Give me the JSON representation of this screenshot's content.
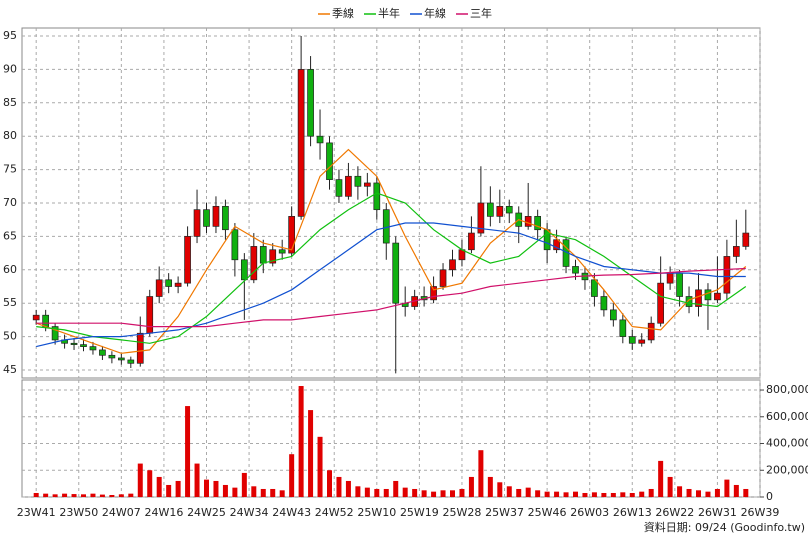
{
  "chart_data": [
    {
      "type": "candlestick",
      "x": [
        0,
        2,
        4,
        6,
        8,
        10,
        12,
        14,
        16,
        18,
        20,
        22,
        24,
        26,
        28,
        30,
        32,
        34,
        36,
        38,
        40,
        42,
        44,
        46,
        48,
        50,
        52,
        54,
        56,
        58,
        60,
        62,
        64,
        66,
        68,
        70,
        72,
        74,
        76,
        78,
        80,
        82,
        84,
        86,
        88,
        90,
        92,
        94,
        96,
        98,
        100,
        102,
        104,
        106,
        108,
        110,
        112,
        114,
        116,
        118,
        120,
        122,
        124,
        126,
        128,
        130,
        132,
        134,
        136,
        138,
        140,
        142,
        144,
        146,
        148,
        150
      ],
      "open": [
        52.5,
        53.2,
        51.5,
        49.5,
        49.0,
        48.8,
        48.5,
        48.0,
        47.2,
        46.8,
        46.5,
        46.0,
        50.5,
        56.0,
        58.5,
        57.5,
        58.0,
        65.0,
        69.0,
        66.5,
        69.5,
        66.0,
        61.5,
        58.5,
        63.5,
        61.0,
        63.0,
        62.5,
        68.0,
        90.0,
        80.0,
        79.0,
        73.5,
        71.0,
        74.0,
        72.5,
        73.0,
        69.0,
        64.0,
        55.0,
        54.5,
        56.0,
        55.5,
        57.5,
        60.0,
        61.5,
        63.0,
        65.5,
        70.0,
        68.0,
        69.5,
        68.5,
        66.5,
        68.0,
        66.0,
        63.0,
        64.5,
        60.5,
        59.5,
        58.5,
        56.0,
        54.0,
        52.5,
        50.0,
        49.0,
        49.5,
        52.0,
        58.0,
        59.5,
        56.0,
        54.5,
        57.0,
        55.5,
        56.5,
        62.0,
        63.5
      ],
      "high": [
        54.0,
        54.0,
        52.0,
        50.3,
        49.8,
        49.6,
        49.2,
        48.6,
        47.8,
        47.4,
        47.0,
        53.0,
        57.0,
        60.5,
        59.5,
        59.0,
        66.5,
        72.0,
        70.0,
        71.0,
        70.5,
        67.0,
        62.5,
        65.5,
        64.5,
        64.0,
        64.5,
        69.5,
        95.0,
        92.0,
        84.0,
        80.0,
        75.0,
        76.0,
        75.5,
        74.5,
        74.0,
        70.0,
        65.0,
        57.5,
        57.0,
        57.5,
        59.0,
        61.0,
        63.0,
        64.5,
        68.0,
        75.5,
        72.5,
        72.0,
        70.5,
        69.5,
        73.0,
        69.0,
        67.0,
        66.0,
        65.0,
        61.5,
        60.5,
        59.5,
        57.0,
        55.0,
        53.5,
        51.0,
        50.5,
        53.0,
        62.0,
        60.5,
        60.0,
        57.5,
        59.5,
        58.0,
        62.0,
        64.5,
        67.5,
        69.0
      ],
      "low": [
        51.8,
        50.8,
        48.8,
        48.2,
        48.0,
        47.8,
        47.3,
        46.5,
        46.0,
        45.8,
        45.3,
        45.5,
        50.0,
        55.0,
        56.5,
        56.5,
        57.5,
        64.0,
        65.5,
        65.5,
        64.5,
        59.0,
        52.5,
        58.0,
        59.5,
        60.5,
        61.5,
        62.0,
        67.5,
        78.5,
        76.5,
        72.0,
        70.0,
        70.5,
        70.5,
        71.0,
        67.5,
        61.5,
        44.5,
        53.0,
        54.0,
        54.5,
        55.0,
        57.0,
        59.0,
        60.5,
        62.5,
        65.0,
        66.5,
        67.0,
        67.0,
        64.0,
        66.0,
        64.5,
        61.0,
        62.5,
        59.5,
        58.5,
        57.0,
        54.5,
        53.0,
        51.5,
        49.0,
        48.0,
        48.5,
        49.0,
        51.5,
        57.0,
        54.5,
        53.5,
        53.0,
        51.0,
        55.0,
        55.5,
        61.0,
        63.0
      ],
      "close": [
        53.2,
        51.5,
        49.5,
        49.0,
        48.8,
        48.5,
        48.0,
        47.2,
        46.8,
        46.5,
        46.0,
        50.5,
        56.0,
        58.5,
        57.5,
        58.0,
        65.0,
        69.0,
        66.5,
        69.5,
        66.0,
        61.5,
        58.5,
        63.5,
        61.0,
        63.0,
        62.5,
        68.0,
        90.0,
        80.0,
        79.0,
        73.5,
        71.0,
        74.0,
        72.5,
        73.0,
        69.0,
        64.0,
        55.0,
        54.5,
        56.0,
        55.5,
        57.5,
        60.0,
        61.5,
        63.0,
        65.5,
        70.0,
        68.0,
        69.5,
        68.5,
        66.5,
        68.0,
        66.0,
        63.0,
        64.5,
        60.5,
        59.5,
        58.5,
        56.0,
        54.0,
        52.5,
        50.0,
        49.0,
        49.5,
        52.0,
        58.0,
        59.5,
        56.0,
        54.5,
        57.0,
        55.5,
        56.5,
        62.0,
        63.5,
        65.5
      ],
      "up_color": "#e00000",
      "down_color": "#10b010",
      "series": [
        {
          "name": "季線",
          "color": "#f07800",
          "x": [
            0,
            6,
            12,
            18,
            24,
            30,
            36,
            42,
            48,
            54,
            60,
            66,
            72,
            78,
            84,
            90,
            96,
            102,
            108,
            114,
            120,
            126,
            132,
            138,
            144,
            150
          ],
          "values": [
            52,
            50.5,
            49,
            47.5,
            48,
            53,
            60,
            66.5,
            64,
            63,
            74,
            78,
            74,
            65,
            57,
            58,
            64,
            67.5,
            66,
            62,
            57,
            51.5,
            51,
            55.5,
            57,
            60.5
          ]
        },
        {
          "name": "半年",
          "color": "#10c010",
          "x": [
            0,
            6,
            12,
            18,
            24,
            30,
            36,
            42,
            48,
            54,
            60,
            66,
            72,
            78,
            84,
            90,
            96,
            102,
            108,
            114,
            120,
            126,
            132,
            138,
            144,
            150
          ],
          "values": [
            51.5,
            51,
            50,
            49.5,
            49,
            50,
            53,
            57,
            61,
            62,
            66,
            69,
            71.5,
            70,
            66,
            63,
            61,
            62,
            65.5,
            64.5,
            62,
            59,
            56,
            55,
            54.5,
            57.5
          ]
        },
        {
          "name": "年線",
          "color": "#1050d0",
          "x": [
            0,
            6,
            12,
            18,
            24,
            30,
            36,
            42,
            48,
            54,
            60,
            66,
            72,
            78,
            84,
            90,
            96,
            102,
            108,
            114,
            120,
            126,
            132,
            138,
            144,
            150
          ],
          "values": [
            48.5,
            49.5,
            50,
            50,
            50.5,
            51,
            52,
            53.5,
            55,
            57,
            60,
            63,
            66,
            67,
            67,
            66.5,
            66,
            65.5,
            64,
            62,
            60.5,
            60,
            59.5,
            59.5,
            59,
            59
          ]
        },
        {
          "name": "三年",
          "color": "#d0106a",
          "x": [
            0,
            6,
            12,
            18,
            24,
            30,
            36,
            42,
            48,
            54,
            60,
            66,
            72,
            78,
            84,
            90,
            96,
            102,
            108,
            114,
            120,
            126,
            132,
            138,
            144,
            150
          ],
          "values": [
            52,
            52,
            52,
            52,
            51.5,
            51.5,
            51.5,
            52,
            52.5,
            52.5,
            53,
            53.5,
            54,
            55,
            56,
            56.5,
            57.5,
            58,
            58.5,
            59,
            59.2,
            59.3,
            59.5,
            59.8,
            60,
            60.2
          ]
        }
      ],
      "xlim": [
        -3,
        153
      ],
      "ylim": [
        43.8,
        96.2
      ],
      "yticks": [
        45,
        50,
        55,
        60,
        65,
        70,
        75,
        80,
        85,
        90,
        95
      ],
      "grid": true
    },
    {
      "type": "bar",
      "x": [
        0,
        2,
        4,
        6,
        8,
        10,
        12,
        14,
        16,
        18,
        20,
        22,
        24,
        26,
        28,
        30,
        32,
        34,
        36,
        38,
        40,
        42,
        44,
        46,
        48,
        50,
        52,
        54,
        56,
        58,
        60,
        62,
        64,
        66,
        68,
        70,
        72,
        74,
        76,
        78,
        80,
        82,
        84,
        86,
        88,
        90,
        92,
        94,
        96,
        98,
        100,
        102,
        104,
        106,
        108,
        110,
        112,
        114,
        116,
        118,
        120,
        122,
        124,
        126,
        128,
        130,
        132,
        134,
        136,
        138,
        140,
        142,
        144,
        146,
        148,
        150
      ],
      "values": [
        30000,
        25000,
        20000,
        25000,
        22000,
        20000,
        25000,
        18000,
        15000,
        20000,
        25000,
        250000,
        200000,
        150000,
        90000,
        120000,
        680000,
        250000,
        130000,
        120000,
        90000,
        70000,
        180000,
        80000,
        60000,
        60000,
        50000,
        320000,
        830000,
        650000,
        450000,
        200000,
        150000,
        120000,
        80000,
        70000,
        60000,
        60000,
        120000,
        70000,
        60000,
        50000,
        40000,
        50000,
        50000,
        60000,
        150000,
        350000,
        150000,
        110000,
        80000,
        60000,
        70000,
        50000,
        40000,
        40000,
        35000,
        40000,
        30000,
        35000,
        30000,
        30000,
        35000,
        30000,
        40000,
        60000,
        270000,
        150000,
        80000,
        60000,
        50000,
        40000,
        60000,
        130000,
        90000,
        60000
      ],
      "color": "#e00000",
      "xlim": [
        -3,
        153
      ],
      "ylim": [
        0,
        875000
      ],
      "yticks": [
        0,
        {
          "value": 200000,
          "label": "200,000"
        },
        {
          "value": 400000,
          "label": "400,000"
        },
        {
          "value": 600000,
          "label": "600,000"
        },
        {
          "value": 800000,
          "label": "800,000"
        }
      ],
      "xticks": [
        {
          "value": 0,
          "label": "23W41"
        },
        {
          "value": 9,
          "label": "23W50"
        },
        {
          "value": 18,
          "label": "24W07"
        },
        {
          "value": 27,
          "label": "24W16"
        },
        {
          "value": 36,
          "label": "24W25"
        },
        {
          "value": 45,
          "label": "24W34"
        },
        {
          "value": 54,
          "label": "24W43"
        },
        {
          "value": 63,
          "label": "24W52"
        },
        {
          "value": 72,
          "label": "25W10"
        },
        {
          "value": 81,
          "label": "25W19"
        },
        {
          "value": 90,
          "label": "25W28"
        },
        {
          "value": 99,
          "label": "25W37"
        },
        {
          "value": 108,
          "label": "25W46"
        },
        {
          "value": 117,
          "label": "26W03"
        },
        {
          "value": 126,
          "label": "26W13"
        },
        {
          "value": 135,
          "label": "26W22"
        },
        {
          "value": 144,
          "label": "26W31"
        },
        {
          "value": 153,
          "label": "26W39"
        }
      ],
      "grid": true,
      "source": "資料日期: 09/24 (Goodinfo.tw)"
    }
  ]
}
